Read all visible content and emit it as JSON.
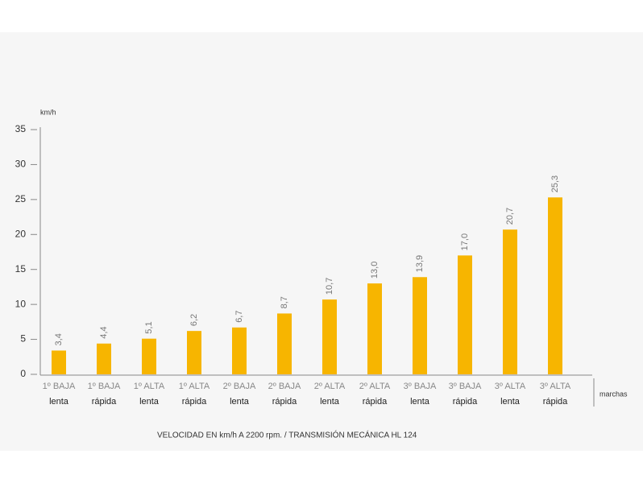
{
  "chart_data": {
    "type": "bar",
    "title": "VELOCIDAD EN km/h A 2200 rpm. / TRANSMISIÓN MECÁNICA HL 124",
    "y_label": "km/h",
    "x_label": "marchas",
    "categories": [
      [
        "1º BAJA",
        "lenta"
      ],
      [
        "1º BAJA",
        "rápida"
      ],
      [
        "1º ALTA",
        "lenta"
      ],
      [
        "1º ALTA",
        "rápida"
      ],
      [
        "2º BAJA",
        "lenta"
      ],
      [
        "2º BAJA",
        "rápida"
      ],
      [
        "2º ALTA",
        "lenta"
      ],
      [
        "2º ALTA",
        "rápida"
      ],
      [
        "3º BAJA",
        "lenta"
      ],
      [
        "3º BAJA",
        "rápida"
      ],
      [
        "3º ALTA",
        "lenta"
      ],
      [
        "3º ALTA",
        "rápida"
      ]
    ],
    "values": [
      3.4,
      4.4,
      5.1,
      6.2,
      6.7,
      8.7,
      10.7,
      13.0,
      13.9,
      17.0,
      20.7,
      25.3
    ],
    "value_labels": [
      "3,4",
      "4,4",
      "5,1",
      "6,2",
      "6,7",
      "8,7",
      "10,7",
      "13,0",
      "13,9",
      "17,0",
      "20,7",
      "25,3"
    ],
    "color": "#f7b500",
    "ylim": [
      0,
      35
    ],
    "yticks": [
      0,
      5,
      10,
      15,
      20,
      25,
      30,
      35
    ]
  }
}
